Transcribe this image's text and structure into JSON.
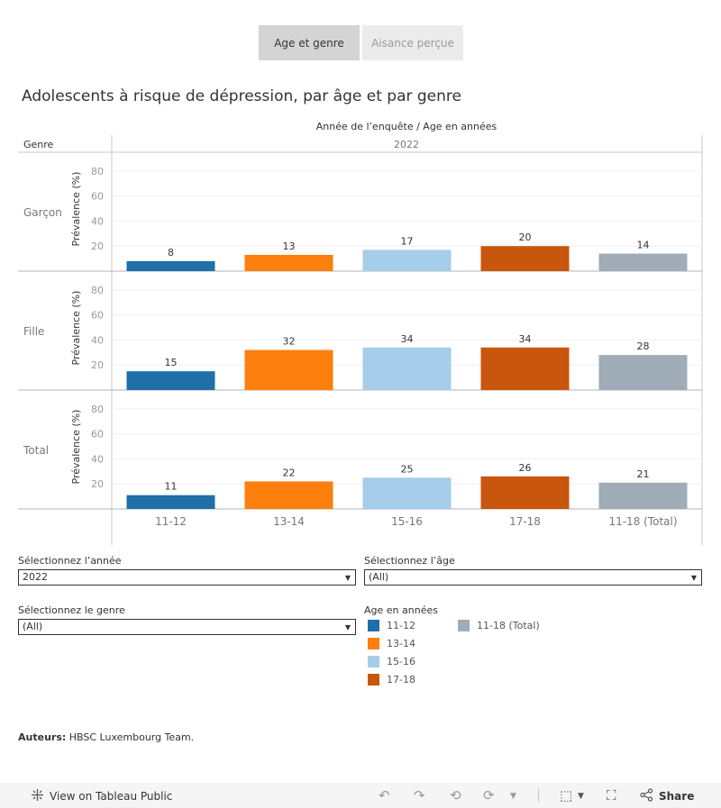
{
  "tabs": [
    {
      "label": "Age et genre"
    },
    {
      "label": "Aisance perçue"
    }
  ],
  "page_title": "Adolescents à risque de dépression, par âge et par genre",
  "chart_data": {
    "type": "bar",
    "title": "Adolescents à risque de dépression, par âge et par genre",
    "header_label": "Année de l’enquête  /  Age en années",
    "row_header_label": "Genre",
    "year": "2022",
    "ylabel": "Prévalence (%)",
    "ylim": [
      0,
      95
    ],
    "yticks": [
      20,
      40,
      60,
      80
    ],
    "categories": [
      "11-12",
      "13-14",
      "15-16",
      "17-18",
      "11-18 (Total)"
    ],
    "colors": [
      "#1f6fa9",
      "#fd7f0e",
      "#a6cdea",
      "#c9560d",
      "#a1acb9"
    ],
    "series": [
      {
        "name": "Garçon",
        "values": [
          8,
          13,
          17,
          20,
          14
        ]
      },
      {
        "name": "Fille",
        "values": [
          15,
          32,
          34,
          34,
          28
        ]
      },
      {
        "name": "Total",
        "values": [
          11,
          22,
          25,
          26,
          21
        ]
      }
    ]
  },
  "controls": {
    "year_label": "Sélectionnez l’année",
    "year_value": "2022",
    "age_label": "Sélectionnez l’âge",
    "age_value": "(All)",
    "gender_label": "Sélectionnez le genre",
    "gender_value": "(All)"
  },
  "legend": {
    "title": "Age en années",
    "items": [
      "11-12",
      "13-14",
      "15-16",
      "17-18",
      "11-18 (Total)"
    ]
  },
  "authors": {
    "label": "Auteurs:",
    "text": "HBSC Luxembourg Team."
  },
  "footer": {
    "view_label": "View on Tableau Public",
    "share_label": "Share"
  }
}
